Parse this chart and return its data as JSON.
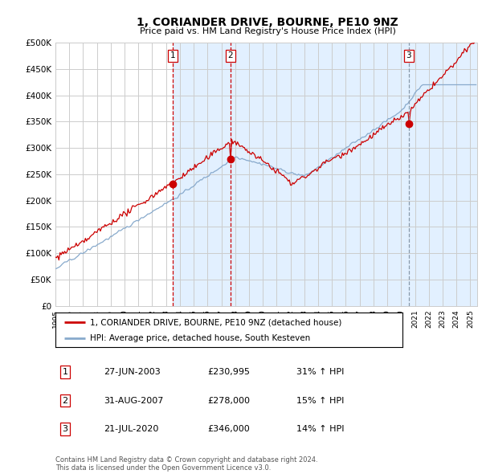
{
  "title": "1, CORIANDER DRIVE, BOURNE, PE10 9NZ",
  "subtitle": "Price paid vs. HM Land Registry's House Price Index (HPI)",
  "ylabel_ticks": [
    "£0",
    "£50K",
    "£100K",
    "£150K",
    "£200K",
    "£250K",
    "£300K",
    "£350K",
    "£400K",
    "£450K",
    "£500K"
  ],
  "ylim": [
    0,
    500000
  ],
  "xlim_start": 1995.0,
  "xlim_end": 2025.5,
  "purchase_dates": [
    2003.487,
    2007.664,
    2020.554
  ],
  "purchase_prices": [
    230995,
    278000,
    346000
  ],
  "purchase_labels": [
    "1",
    "2",
    "3"
  ],
  "legend_line1": "1, CORIANDER DRIVE, BOURNE, PE10 9NZ (detached house)",
  "legend_line2": "HPI: Average price, detached house, South Kesteven",
  "table_rows": [
    [
      "1",
      "27-JUN-2003",
      "£230,995",
      "31% ↑ HPI"
    ],
    [
      "2",
      "31-AUG-2007",
      "£278,000",
      "15% ↑ HPI"
    ],
    [
      "3",
      "21-JUL-2020",
      "£346,000",
      "14% ↑ HPI"
    ]
  ],
  "footnote": "Contains HM Land Registry data © Crown copyright and database right 2024.\nThis data is licensed under the Open Government Licence v3.0.",
  "red_color": "#cc0000",
  "blue_color": "#88aacc",
  "bg_color": "#ddeeff",
  "grid_color": "#cccccc"
}
